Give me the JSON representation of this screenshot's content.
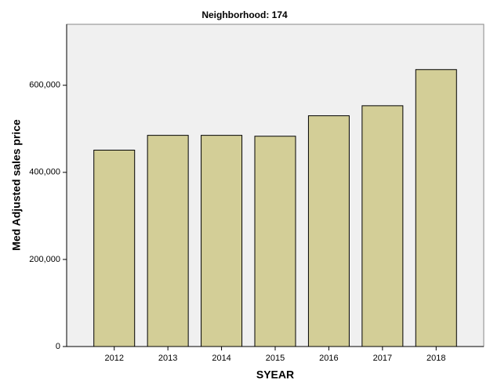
{
  "chart_data": {
    "type": "bar",
    "title": "Neighborhood: 174",
    "x_label": "SYEAR",
    "y_label": "Med Adjusted sales price",
    "categories": [
      "2012",
      "2013",
      "2014",
      "2015",
      "2016",
      "2017",
      "2018"
    ],
    "values": [
      451000,
      485000,
      485000,
      483000,
      530000,
      553000,
      636000
    ],
    "color": "#d3ce97",
    "ylim": [
      0,
      740000
    ],
    "yticks": [
      0,
      {
        "value": 200000,
        "label": "200,000"
      },
      {
        "value": 400000,
        "label": "400,000"
      },
      {
        "value": 600000,
        "label": "600,000"
      }
    ],
    "grid": false
  }
}
